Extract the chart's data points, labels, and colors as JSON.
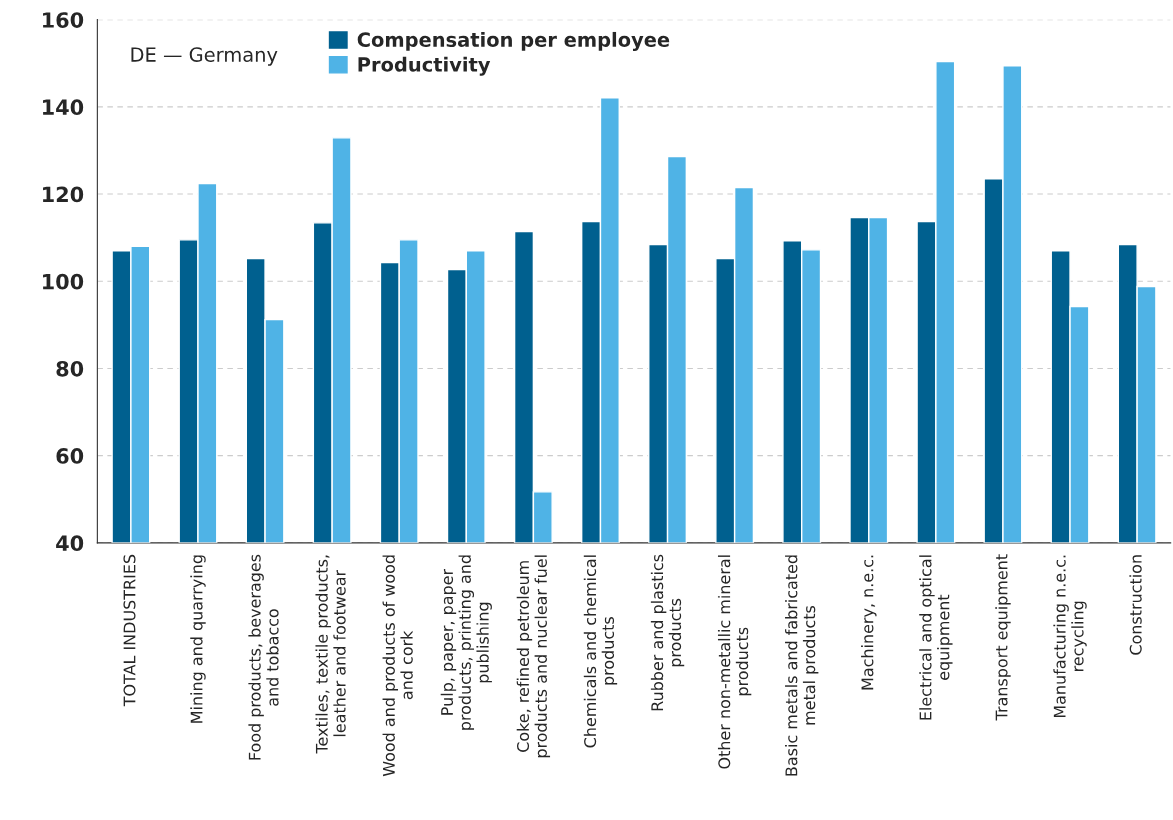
{
  "chart_data": {
    "type": "bar",
    "categories": [
      "TOTAL INDUSTRIES",
      "Mining and quarrying",
      "Food products, beverages and tobacco",
      "Textiles, textile products, leather and footwear",
      "Wood and products of wood and cork",
      "Pulp, paper, paper products, printing and publishing",
      "Coke, refined petroleum products and nuclear fuel",
      "Chemicals and chemical products",
      "Rubber and plastics products",
      "Other non-metallic mineral products",
      "Basic metals and fabricated metal products",
      "Machinery, n.e.c.",
      "Electrical and optical equipment",
      "Transport equipment",
      "Manufacturing n.e.c. recycling",
      "Construction"
    ],
    "series": [
      {
        "name": "Compensation per employee",
        "color": "#00608f",
        "values": [
          107,
          109.5,
          105.2,
          113.4,
          104.3,
          102.7,
          111.4,
          113.7,
          108.4,
          105.2,
          109.3,
          114.6,
          113.7,
          123.5,
          107,
          108.4
        ]
      },
      {
        "name": "Productivity",
        "color": "#4fb3e6",
        "values": [
          108,
          122.4,
          91.2,
          132.9,
          109.5,
          107,
          51.7,
          142.1,
          128.6,
          121.5,
          107.2,
          114.6,
          150.4,
          149.4,
          94.2,
          98.8
        ]
      }
    ],
    "ylim": [
      40,
      160
    ],
    "yticks": [
      40,
      60,
      80,
      100,
      120,
      140,
      160
    ],
    "grid": "y",
    "legend": "top left",
    "annotations": [
      "DE — Germany"
    ]
  }
}
